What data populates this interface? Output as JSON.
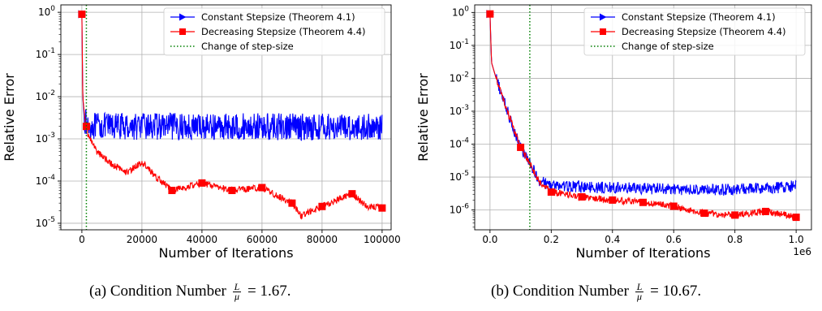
{
  "chart_data": [
    {
      "type": "line",
      "xlabel": "Number of Iterations",
      "ylabel": "Relative Error",
      "yscale": "log",
      "xlim": [
        -7000,
        103000
      ],
      "ylim": [
        7e-06,
        1.5
      ],
      "xticks": [
        0,
        20000,
        40000,
        60000,
        80000,
        100000
      ],
      "xtick_labels": [
        "0",
        "20000",
        "40000",
        "60000",
        "80000",
        "100000"
      ],
      "x_offset_label": "",
      "yticks": [
        1e-05,
        0.0001,
        0.001,
        0.01,
        0.1,
        1
      ],
      "ytick_labels": [
        "10^-5",
        "10^-4",
        "10^-3",
        "10^-2",
        "10^-1",
        "10^0"
      ],
      "grid": true,
      "legend": "top-right",
      "vline": {
        "x": 1500,
        "color": "#008000",
        "style": "dotted"
      },
      "series": [
        {
          "name": "Constant Stepsize (Theorem 4.1)",
          "color": "#0000ff",
          "marker": "triangle-right",
          "base_x": [
            0,
            300,
            800,
            1500,
            2500,
            100000
          ],
          "base_y": [
            0.9,
            0.01,
            0.003,
            0.0022,
            0.002,
            0.0019
          ],
          "noise": 0.16,
          "n": 800,
          "x_end": 100000,
          "marker_x": [
            0
          ]
        },
        {
          "name": "Decreasing Stepsize (Theorem 4.4)",
          "color": "#ff0000",
          "marker": "square",
          "base_x": [
            0,
            300,
            1000,
            2000,
            5000,
            10000,
            15000,
            20000,
            25000,
            30000,
            40000,
            50000,
            60000,
            70000,
            73000,
            80000,
            90000,
            95000,
            100000
          ],
          "base_y": [
            0.9,
            0.01,
            0.003,
            0.0013,
            0.0005,
            0.00025,
            0.00016,
            0.00028,
            0.00012,
            6e-05,
            9e-05,
            6e-05,
            7e-05,
            3e-05,
            1.5e-05,
            2.5e-05,
            5e-05,
            2.5e-05,
            2.3e-05
          ],
          "noise": 0.04,
          "n": 700,
          "x_end": 100000,
          "marker_x": [
            0,
            1500,
            30000,
            40000,
            50000,
            60000,
            70000,
            80000,
            90000,
            100000
          ]
        }
      ],
      "legend_extra": {
        "label": "Change of step-size",
        "color": "#008000",
        "style": "dotted"
      },
      "caption": {
        "prefix": "(a) Condition Number ",
        "frac_num": "L",
        "frac_den": "μ",
        "suffix": " = 1.67."
      }
    },
    {
      "type": "line",
      "xlabel": "Number of Iterations",
      "ylabel": "Relative Error",
      "yscale": "log",
      "xlim": [
        -0.05,
        1.05
      ],
      "ylim": [
        2.5e-07,
        1.7
      ],
      "xticks": [
        0.0,
        0.2,
        0.4,
        0.6,
        0.8,
        1.0
      ],
      "xtick_labels": [
        "0.0",
        "0.2",
        "0.4",
        "0.6",
        "0.8",
        "1.0"
      ],
      "x_offset_label": "1e6",
      "yticks": [
        1e-06,
        1e-05,
        0.0001,
        0.001,
        0.01,
        0.1,
        1
      ],
      "ytick_labels": [
        "10^-6",
        "10^-5",
        "10^-4",
        "10^-3",
        "10^-2",
        "10^-1",
        "10^0"
      ],
      "grid": true,
      "legend": "top-right",
      "vline": {
        "x": 0.13,
        "color": "#008000",
        "style": "dotted"
      },
      "series": [
        {
          "name": "Constant Stepsize (Theorem 4.1)",
          "color": "#0000ff",
          "marker": "triangle-right",
          "base_x": [
            0,
            0.005,
            0.02,
            0.05,
            0.08,
            0.1,
            0.13,
            0.16,
            0.2,
            0.3,
            0.5,
            0.7,
            0.9,
            1.0
          ],
          "base_y": [
            0.9,
            0.03,
            0.01,
            0.0015,
            0.00025,
            8e-05,
            2.5e-05,
            8e-06,
            5.5e-06,
            5e-06,
            4.5e-06,
            4e-06,
            4.5e-06,
            5.5e-06
          ],
          "noise": 0.09,
          "n": 700,
          "x_end": 1.0,
          "marker_x": [
            0
          ]
        },
        {
          "name": "Decreasing Stepsize (Theorem 4.4)",
          "color": "#ff0000",
          "marker": "square",
          "base_x": [
            0,
            0.005,
            0.02,
            0.05,
            0.08,
            0.1,
            0.13,
            0.16,
            0.2,
            0.3,
            0.4,
            0.5,
            0.6,
            0.7,
            0.8,
            0.9,
            1.0
          ],
          "base_y": [
            0.9,
            0.03,
            0.01,
            0.0015,
            0.00025,
            8e-05,
            2.5e-05,
            7e-06,
            3.5e-06,
            2.5e-06,
            2e-06,
            1.7e-06,
            1.3e-06,
            8e-07,
            7e-07,
            9e-07,
            6e-07
          ],
          "noise": 0.05,
          "n": 700,
          "x_end": 1.0,
          "marker_x": [
            0,
            0.1,
            0.2,
            0.3,
            0.4,
            0.5,
            0.6,
            0.7,
            0.8,
            0.9,
            1.0
          ]
        }
      ],
      "legend_extra": {
        "label": "Change of step-size",
        "color": "#008000",
        "style": "dotted"
      },
      "caption": {
        "prefix": "(b) Condition Number ",
        "frac_num": "L",
        "frac_den": "μ",
        "suffix": " = 10.67."
      }
    }
  ]
}
